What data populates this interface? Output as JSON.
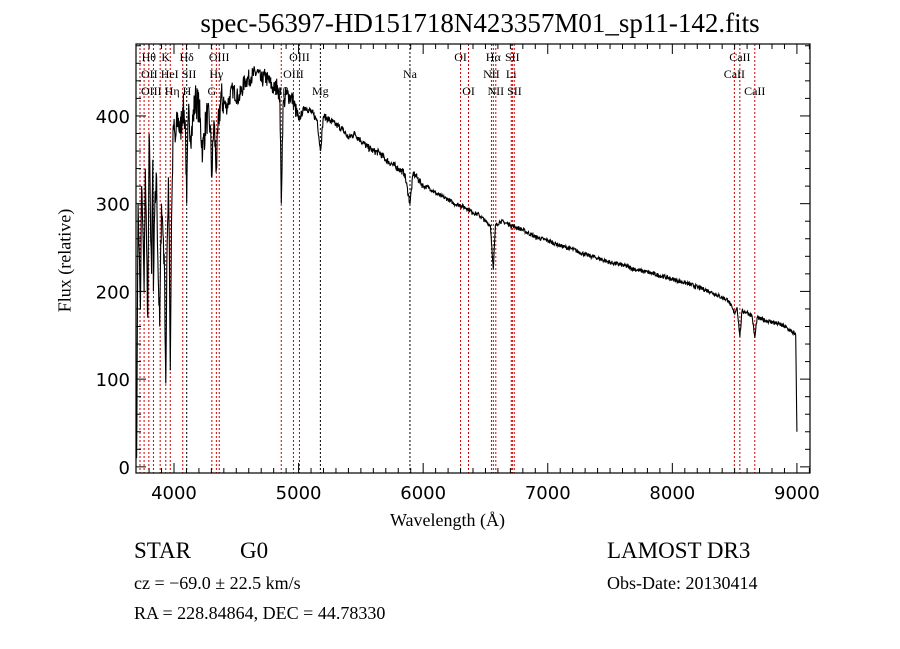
{
  "chart_data": {
    "type": "line",
    "title": "spec-56397-HD151718N423357M01_sp11-142.fits",
    "xlabel": "Wavelength (Å)",
    "ylabel": "Flux (relative)",
    "xlim": [
      3695,
      9105
    ],
    "ylim": [
      -7,
      482
    ],
    "xticks": [
      4000,
      5000,
      6000,
      7000,
      8000,
      9000
    ],
    "yticks": [
      0,
      100,
      200,
      300,
      400
    ],
    "grid": false,
    "series": [
      {
        "name": "spectrum",
        "x": [
          3700,
          3705,
          3712,
          3720,
          3730,
          3740,
          3750,
          3760,
          3770,
          3780,
          3790,
          3800,
          3810,
          3820,
          3830,
          3835,
          3845,
          3860,
          3870,
          3885,
          3900,
          3915,
          3925,
          3934,
          3945,
          3955,
          3962,
          3970,
          3980,
          3995,
          4010,
          4030,
          4050,
          4070,
          4090,
          4102,
          4115,
          4140,
          4170,
          4200,
          4230,
          4260,
          4290,
          4304,
          4320,
          4340,
          4360,
          4380,
          4420,
          4470,
          4520,
          4570,
          4620,
          4670,
          4700,
          4730,
          4770,
          4800,
          4830,
          4850,
          4861,
          4875,
          4900,
          4950,
          5000,
          5050,
          5100,
          5150,
          5175,
          5200,
          5250,
          5300,
          5350,
          5400,
          5450,
          5500,
          5550,
          5600,
          5650,
          5700,
          5750,
          5800,
          5850,
          5894,
          5920,
          5950,
          6000,
          6050,
          6100,
          6150,
          6200,
          6250,
          6300,
          6350,
          6400,
          6450,
          6500,
          6540,
          6563,
          6580,
          6620,
          6700,
          6800,
          6900,
          7000,
          7100,
          7200,
          7300,
          7400,
          7500,
          7600,
          7700,
          7800,
          7900,
          8000,
          8100,
          8200,
          8300,
          8400,
          8450,
          8498,
          8520,
          8542,
          8560,
          8600,
          8640,
          8662,
          8680,
          8720,
          8800,
          8850,
          8900,
          8950,
          8990,
          9000
        ],
        "y": [
          10,
          130,
          300,
          250,
          180,
          320,
          270,
          200,
          340,
          250,
          170,
          380,
          300,
          220,
          350,
          200,
          290,
          330,
          240,
          160,
          300,
          260,
          210,
          95,
          250,
          330,
          260,
          110,
          280,
          390,
          370,
          400,
          380,
          410,
          395,
          300,
          400,
          380,
          420,
          410,
          360,
          400,
          390,
          330,
          395,
          340,
          400,
          420,
          410,
          430,
          420,
          440,
          445,
          450,
          440,
          445,
          438,
          430,
          435,
          420,
          300,
          410,
          425,
          420,
          395,
          410,
          405,
          395,
          360,
          400,
          395,
          390,
          385,
          375,
          380,
          372,
          365,
          360,
          358,
          350,
          345,
          340,
          335,
          300,
          335,
          330,
          320,
          318,
          312,
          308,
          305,
          300,
          298,
          295,
          290,
          287,
          280,
          275,
          225,
          275,
          280,
          276,
          270,
          262,
          258,
          252,
          248,
          242,
          238,
          233,
          230,
          225,
          222,
          218,
          214,
          210,
          205,
          200,
          193,
          190,
          175,
          182,
          148,
          178,
          176,
          172,
          147,
          170,
          168,
          165,
          163,
          160,
          155,
          150,
          40
        ]
      }
    ],
    "line_markers": [
      {
        "label": "OII",
        "wavelength": 3727,
        "row": 2,
        "color": "#cc0000"
      },
      {
        "label": "Hθ",
        "wavelength": 3798,
        "row": 1,
        "color": "#cc0000"
      },
      {
        "label": "OIII",
        "wavelength": 3760,
        "row": 3,
        "color": "#cc0000"
      },
      {
        "label": "Hη",
        "wavelength": 3835,
        "row": 3,
        "color": "#cc0000"
      },
      {
        "label": "HeI",
        "wavelength": 3889,
        "row": 2,
        "color": "#cc0000"
      },
      {
        "label": "K",
        "wavelength": 3934,
        "row": 1,
        "color": "#cc0000"
      },
      {
        "label": "H",
        "wavelength": 3970,
        "row": 3,
        "color": "#cc0000"
      },
      {
        "label": "SII",
        "wavelength": 4070,
        "row": 2,
        "color": "#cc0000"
      },
      {
        "label": "Hδ",
        "wavelength": 4102,
        "row": 1,
        "color": "#000000"
      },
      {
        "label": "G",
        "wavelength": 4304,
        "row": 3,
        "color": "#cc0000"
      },
      {
        "label": "Hγ",
        "wavelength": 4340,
        "row": 2,
        "color": "#cc0000"
      },
      {
        "label": "OIII",
        "wavelength": 4363,
        "row": 1,
        "color": "#cc0000"
      },
      {
        "label": "Hβ",
        "wavelength": 4861,
        "row": 3,
        "color": "#cc0000"
      },
      {
        "label": "OIII",
        "wavelength": 4959,
        "row": 2,
        "color": "#cc0000"
      },
      {
        "label": "OIII",
        "wavelength": 5007,
        "row": 1,
        "color": "#cc0000"
      },
      {
        "label": "Mg",
        "wavelength": 5175,
        "row": 3,
        "color": "#000000"
      },
      {
        "label": "Na",
        "wavelength": 5894,
        "row": 2,
        "color": "#000000"
      },
      {
        "label": "OI",
        "wavelength": 6300,
        "row": 1,
        "color": "#cc0000"
      },
      {
        "label": "OI",
        "wavelength": 6364,
        "row": 3,
        "color": "#cc0000"
      },
      {
        "label": "NII",
        "wavelength": 6548,
        "row": 2,
        "color": "#cc0000"
      },
      {
        "label": "Hα",
        "wavelength": 6563,
        "row": 1,
        "color": "#cc0000"
      },
      {
        "label": "NII",
        "wavelength": 6583,
        "row": 3,
        "color": "#cc0000"
      },
      {
        "label": "Li",
        "wavelength": 6707,
        "row": 2,
        "color": "#cc0000"
      },
      {
        "label": "SII",
        "wavelength": 6716,
        "row": 1,
        "color": "#cc0000"
      },
      {
        "label": "SII",
        "wavelength": 6731,
        "row": 3,
        "color": "#cc0000"
      },
      {
        "label": "CaII",
        "wavelength": 8498,
        "row": 2,
        "color": "#cc0000"
      },
      {
        "label": "CaII",
        "wavelength": 8542,
        "row": 1,
        "color": "#cc0000"
      },
      {
        "label": "CaII",
        "wavelength": 8662,
        "row": 3,
        "color": "#cc0000"
      }
    ]
  },
  "info": {
    "object_class": "STAR",
    "subclass": "G0",
    "survey": "LAMOST DR3",
    "redshift": "cz = −69.0 ± 22.5 km/s",
    "obs_date": "Obs-Date: 20130414",
    "coords": "RA = 228.84864, DEC =  44.78330"
  }
}
